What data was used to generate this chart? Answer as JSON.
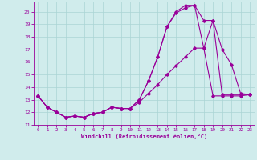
{
  "xlabel": "Windchill (Refroidissement éolien,°C)",
  "bg_color": "#d0ecec",
  "grid_color": "#aad4d4",
  "line_color": "#990099",
  "xlim": [
    -0.5,
    23.5
  ],
  "ylim": [
    11,
    20.8
  ],
  "yticks": [
    11,
    12,
    13,
    14,
    15,
    16,
    17,
    18,
    19,
    20
  ],
  "xticks": [
    0,
    1,
    2,
    3,
    4,
    5,
    6,
    7,
    8,
    9,
    10,
    11,
    12,
    13,
    14,
    15,
    16,
    17,
    18,
    19,
    20,
    21,
    22,
    23
  ],
  "line1_x": [
    0,
    1,
    2,
    3,
    4,
    5,
    6,
    7,
    8,
    9,
    10,
    11,
    12,
    13,
    14,
    15,
    16,
    17,
    18,
    19,
    20,
    21,
    22,
    23
  ],
  "line1_y": [
    13.3,
    12.4,
    12.0,
    11.6,
    11.7,
    11.6,
    11.9,
    12.0,
    12.4,
    12.3,
    12.3,
    13.0,
    14.5,
    16.4,
    18.8,
    19.9,
    20.3,
    20.5,
    17.1,
    19.3,
    17.0,
    15.8,
    13.5,
    13.4
  ],
  "line2_x": [
    0,
    1,
    2,
    3,
    4,
    5,
    6,
    7,
    8,
    9,
    10,
    11,
    12,
    13,
    14,
    15,
    16,
    17,
    18,
    19,
    20,
    21,
    22,
    23
  ],
  "line2_y": [
    13.3,
    12.4,
    12.0,
    11.6,
    11.7,
    11.6,
    11.9,
    12.0,
    12.4,
    12.3,
    12.3,
    13.0,
    14.5,
    16.4,
    18.8,
    20.0,
    20.5,
    20.5,
    19.3,
    19.3,
    13.4,
    13.4,
    13.4,
    13.4
  ],
  "line3_x": [
    0,
    1,
    2,
    3,
    4,
    5,
    6,
    7,
    8,
    9,
    10,
    11,
    12,
    13,
    14,
    15,
    16,
    17,
    18,
    19,
    20,
    21,
    22,
    23
  ],
  "line3_y": [
    13.3,
    12.4,
    12.0,
    11.6,
    11.7,
    11.6,
    11.9,
    12.0,
    12.4,
    12.3,
    12.3,
    12.8,
    13.5,
    14.2,
    15.0,
    15.7,
    16.4,
    17.1,
    17.1,
    13.3,
    13.3,
    13.3,
    13.3,
    13.4
  ]
}
